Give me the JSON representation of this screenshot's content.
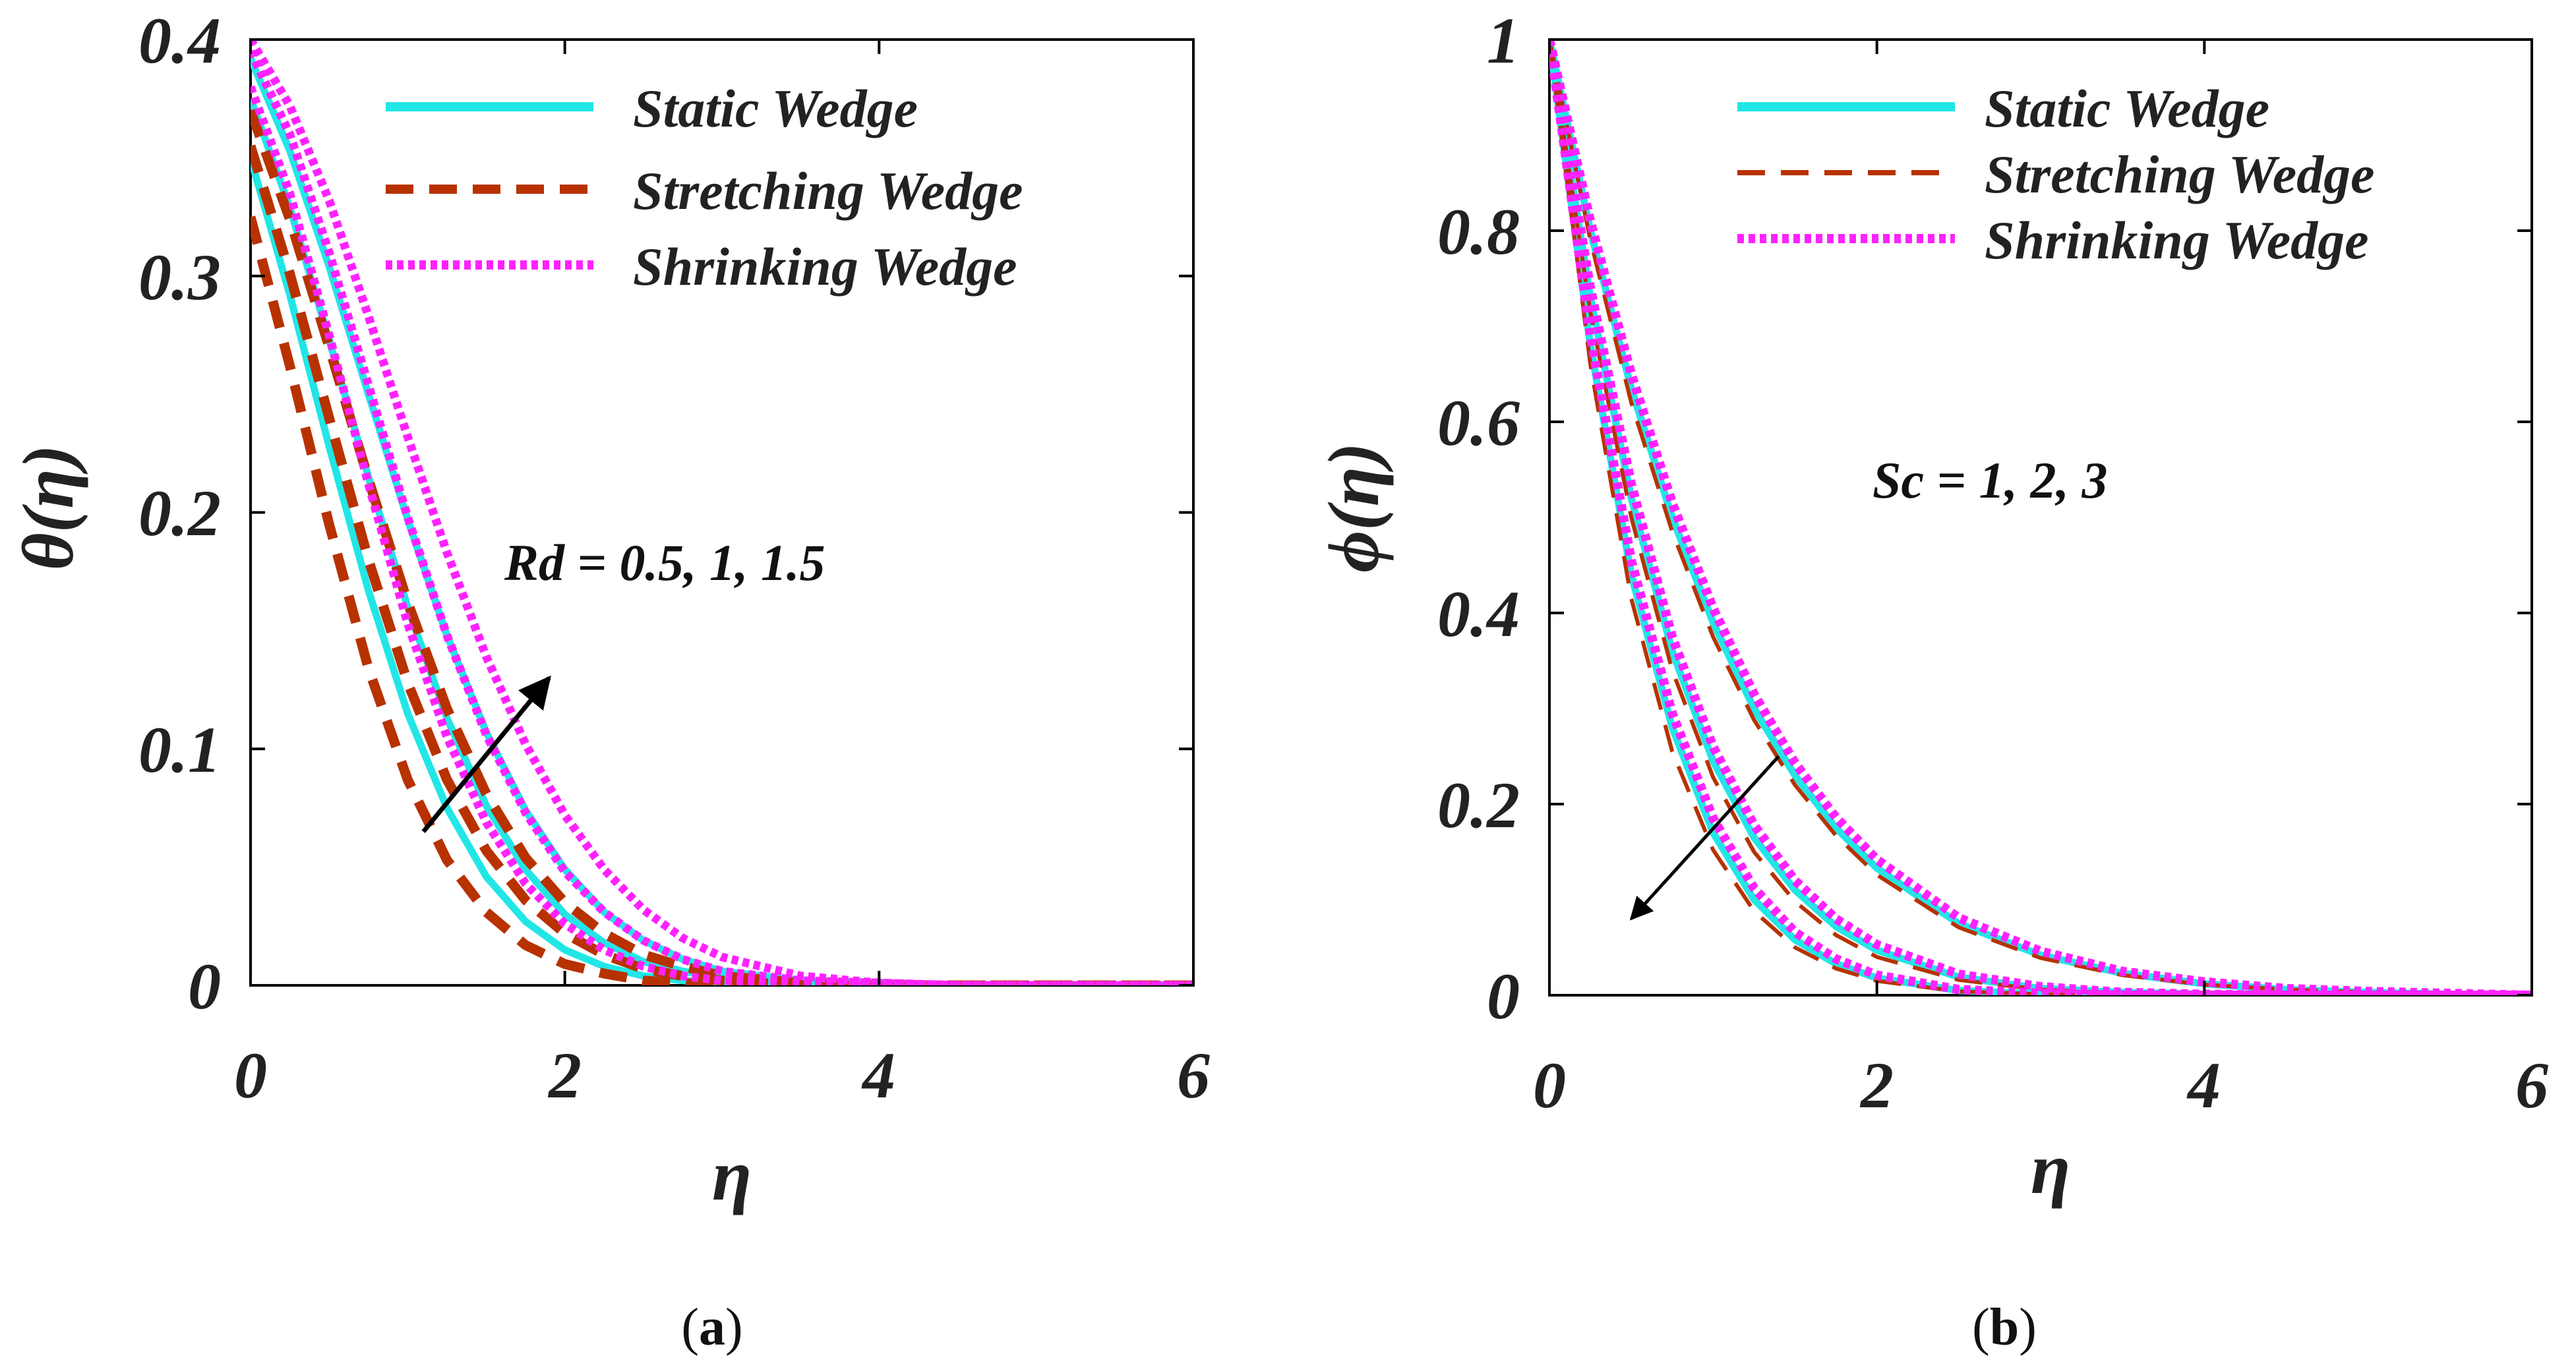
{
  "colors": {
    "static": "#22e6e6",
    "stretching": "#b83200",
    "shrinking": "#ff22ff",
    "axis": "#000000",
    "text": "#222222"
  },
  "chart_data": [
    {
      "id": "a",
      "type": "line",
      "caption": {
        "open": "(",
        "letter": "a",
        "close": ")"
      },
      "xlabel": "η",
      "ylabel": "θ(η)",
      "xlim": [
        0,
        6
      ],
      "ylim": [
        0,
        0.4
      ],
      "xticks": [
        "0",
        "2",
        "4",
        "6"
      ],
      "yticks": [
        "0",
        "0.1",
        "0.2",
        "0.3",
        "0.4"
      ],
      "legend": [
        "Static Wedge",
        "Stretching Wedge",
        "Shrinking Wedge"
      ],
      "legend_position": "top-right",
      "annotation": {
        "text": "Rd = 0.5, 1, 1.5",
        "arrow_from": [
          1.1,
          0.065
        ],
        "arrow_to": [
          1.9,
          0.13
        ]
      },
      "x": [
        0,
        0.25,
        0.5,
        0.75,
        1,
        1.25,
        1.5,
        1.75,
        2,
        2.25,
        2.5,
        2.75,
        3,
        3.5,
        4,
        4.5,
        5,
        5.5,
        6
      ],
      "series": [
        {
          "name": "Static Wedge, Rd = 0.5",
          "group": "static",
          "values": [
            0.35,
            0.292,
            0.228,
            0.167,
            0.115,
            0.075,
            0.046,
            0.027,
            0.015,
            0.008,
            0.004,
            0.002,
            0.001,
            0,
            0,
            0,
            0,
            0,
            0
          ]
        },
        {
          "name": "Static Wedge, Rd = 1",
          "group": "static",
          "values": [
            0.375,
            0.329,
            0.273,
            0.215,
            0.16,
            0.113,
            0.076,
            0.049,
            0.03,
            0.018,
            0.01,
            0.006,
            0.003,
            0.001,
            0,
            0,
            0,
            0,
            0
          ]
        },
        {
          "name": "Static Wedge, Rd = 1.5",
          "group": "static",
          "values": [
            0.392,
            0.353,
            0.304,
            0.25,
            0.197,
            0.148,
            0.107,
            0.074,
            0.049,
            0.031,
            0.019,
            0.011,
            0.006,
            0.002,
            0.001,
            0,
            0,
            0,
            0
          ]
        },
        {
          "name": "Stretching Wedge, Rd = 0.5",
          "group": "stretching",
          "values": [
            0.325,
            0.262,
            0.195,
            0.134,
            0.087,
            0.053,
            0.031,
            0.017,
            0.009,
            0.005,
            0.002,
            0.001,
            0,
            0,
            0,
            0,
            0,
            0,
            0
          ]
        },
        {
          "name": "Stretching Wedge, Rd = 1",
          "group": "stretching",
          "values": [
            0.355,
            0.301,
            0.24,
            0.18,
            0.128,
            0.087,
            0.057,
            0.036,
            0.022,
            0.013,
            0.007,
            0.004,
            0.002,
            0,
            0,
            0,
            0,
            0,
            0
          ]
        },
        {
          "name": "Stretching Wedge, Rd = 1.5",
          "group": "stretching",
          "values": [
            0.37,
            0.324,
            0.27,
            0.214,
            0.162,
            0.117,
            0.081,
            0.054,
            0.035,
            0.022,
            0.013,
            0.008,
            0.004,
            0.001,
            0,
            0,
            0,
            0,
            0
          ]
        },
        {
          "name": "Shrinking Wedge, Rd = 0.5",
          "group": "shrinking",
          "values": [
            0.38,
            0.335,
            0.275,
            0.212,
            0.153,
            0.105,
            0.069,
            0.043,
            0.026,
            0.015,
            0.008,
            0.004,
            0.002,
            0.001,
            0,
            0,
            0,
            0,
            0
          ]
        },
        {
          "name": "Shrinking Wedge, Rd = 1",
          "group": "shrinking",
          "values": [
            0.395,
            0.36,
            0.31,
            0.254,
            0.198,
            0.148,
            0.106,
            0.073,
            0.048,
            0.031,
            0.019,
            0.011,
            0.006,
            0.002,
            0.001,
            0,
            0,
            0,
            0
          ]
        },
        {
          "name": "Shrinking Wedge, Rd = 1.5",
          "group": "shrinking",
          "values": [
            0.4,
            0.372,
            0.332,
            0.283,
            0.232,
            0.183,
            0.139,
            0.102,
            0.072,
            0.049,
            0.032,
            0.02,
            0.012,
            0.004,
            0.001,
            0,
            0,
            0,
            0
          ]
        }
      ]
    },
    {
      "id": "b",
      "type": "line",
      "caption": {
        "open": "(",
        "letter": "b",
        "close": ")"
      },
      "xlabel": "η",
      "ylabel": "ϕ(η)",
      "xlim": [
        0,
        6
      ],
      "ylim": [
        0,
        1
      ],
      "xticks": [
        "0",
        "2",
        "4",
        "6"
      ],
      "yticks": [
        "0",
        "0.2",
        "0.4",
        "0.6",
        "0.8",
        "1"
      ],
      "legend": [
        "Static Wedge",
        "Stretching Wedge",
        "Shrinking Wedge"
      ],
      "legend_position": "top-right",
      "annotation": {
        "text": "Sc = 1, 2, 3",
        "arrow_from": [
          1.4,
          0.25
        ],
        "arrow_to": [
          0.5,
          0.08
        ]
      },
      "x": [
        0,
        0.25,
        0.5,
        0.75,
        1,
        1.25,
        1.5,
        1.75,
        2,
        2.5,
        3,
        3.5,
        4,
        4.5,
        5,
        5.5,
        6
      ],
      "series": [
        {
          "name": "Static Wedge, Sc = 1",
          "group": "static",
          "values": [
            1,
            0.8,
            0.635,
            0.5,
            0.39,
            0.3,
            0.23,
            0.175,
            0.133,
            0.075,
            0.042,
            0.023,
            0.012,
            0.006,
            0.003,
            0.001,
            0
          ]
        },
        {
          "name": "Static Wedge, Sc = 2",
          "group": "static",
          "values": [
            1,
            0.73,
            0.52,
            0.36,
            0.245,
            0.165,
            0.11,
            0.072,
            0.047,
            0.019,
            0.007,
            0.003,
            0.001,
            0,
            0,
            0,
            0
          ]
        },
        {
          "name": "Static Wedge, Sc = 3",
          "group": "static",
          "values": [
            1,
            0.68,
            0.44,
            0.28,
            0.17,
            0.1,
            0.058,
            0.033,
            0.018,
            0.005,
            0.001,
            0,
            0,
            0,
            0,
            0,
            0
          ]
        },
        {
          "name": "Stretching Wedge, Sc = 1",
          "group": "stretching",
          "values": [
            1,
            0.79,
            0.62,
            0.485,
            0.375,
            0.288,
            0.22,
            0.167,
            0.126,
            0.071,
            0.039,
            0.021,
            0.011,
            0.006,
            0.003,
            0.001,
            0
          ]
        },
        {
          "name": "Stretching Wedge, Sc = 2",
          "group": "stretching",
          "values": [
            1,
            0.715,
            0.5,
            0.34,
            0.228,
            0.15,
            0.098,
            0.063,
            0.04,
            0.016,
            0.006,
            0.002,
            0.001,
            0,
            0,
            0,
            0
          ]
        },
        {
          "name": "Stretching Wedge, Sc = 3",
          "group": "stretching",
          "values": [
            1,
            0.66,
            0.415,
            0.255,
            0.152,
            0.088,
            0.05,
            0.028,
            0.015,
            0.004,
            0.001,
            0,
            0,
            0,
            0,
            0,
            0
          ]
        },
        {
          "name": "Shrinking Wedge, Sc = 1",
          "group": "shrinking",
          "values": [
            1,
            0.81,
            0.65,
            0.515,
            0.405,
            0.315,
            0.243,
            0.186,
            0.142,
            0.081,
            0.046,
            0.025,
            0.014,
            0.007,
            0.004,
            0.002,
            0
          ]
        },
        {
          "name": "Shrinking Wedge, Sc = 2",
          "group": "shrinking",
          "values": [
            1,
            0.74,
            0.535,
            0.375,
            0.26,
            0.178,
            0.12,
            0.08,
            0.053,
            0.022,
            0.009,
            0.003,
            0.001,
            0,
            0,
            0,
            0
          ]
        },
        {
          "name": "Shrinking Wedge, Sc = 3",
          "group": "shrinking",
          "values": [
            1,
            0.69,
            0.455,
            0.295,
            0.185,
            0.112,
            0.066,
            0.038,
            0.021,
            0.006,
            0.002,
            0,
            0,
            0,
            0,
            0,
            0
          ]
        }
      ]
    }
  ]
}
